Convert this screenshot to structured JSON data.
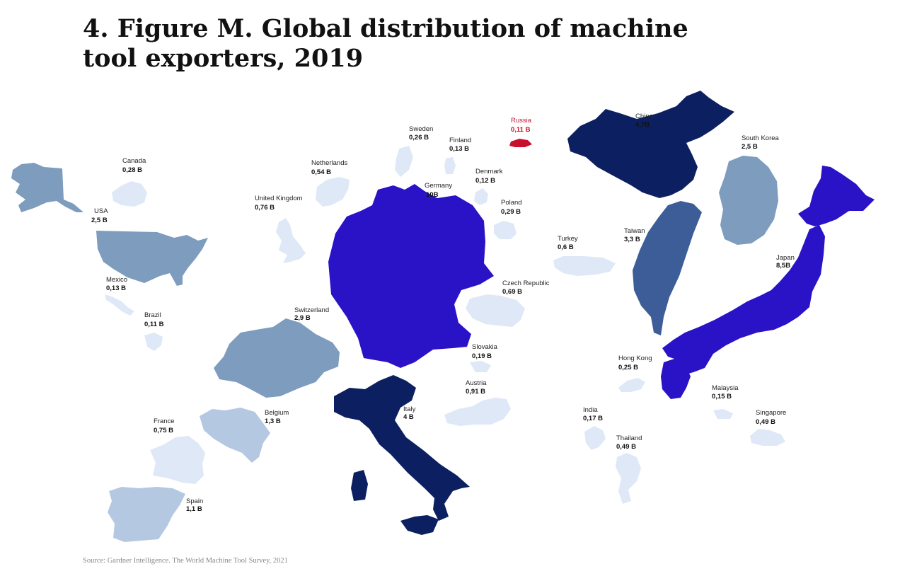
{
  "title": "4. Figure M. Global distribution of machine tool exporters, 2019",
  "source": "Source: Gardner Intelligence. The World Machine Tool Survey, 2021",
  "palette": {
    "navy": "#0c2061",
    "violet": "#2a12c6",
    "steel": "#3d5d99",
    "slate": "#7d9cbe",
    "light": "#b4c8e2",
    "pale": "#dfe8f7",
    "red": "#c8102e"
  },
  "regions": [
    {
      "id": "alaska",
      "country": "USA",
      "color": "slate"
    },
    {
      "id": "usa",
      "name": "USA",
      "value": "2,5 B",
      "color": "slate"
    },
    {
      "id": "canada",
      "name": "Canada",
      "value": "0,28 B",
      "color": "pale"
    },
    {
      "id": "mexico",
      "name": "Mexico",
      "value": "0,13 B",
      "color": "pale"
    },
    {
      "id": "brazil",
      "name": "Brazil",
      "value": "0,11 B",
      "color": "pale"
    },
    {
      "id": "uk",
      "name": "United Kingdom",
      "value": "0,76 B",
      "color": "pale"
    },
    {
      "id": "netherlands",
      "name": "Netherlands",
      "value": "0,54 B",
      "color": "pale"
    },
    {
      "id": "sweden",
      "name": "Sweden",
      "value": "0,26 B",
      "color": "pale"
    },
    {
      "id": "finland",
      "name": "Finland",
      "value": "0,13 B",
      "color": "pale"
    },
    {
      "id": "russia",
      "name": "Russia",
      "value": "0,11 B",
      "color": "red"
    },
    {
      "id": "denmark",
      "name": "Denmark",
      "value": "0,12 B",
      "color": "pale"
    },
    {
      "id": "germany",
      "name": "Germany",
      "value": "10B",
      "color": "violet"
    },
    {
      "id": "poland",
      "name": "Poland",
      "value": "0,29 B",
      "color": "pale"
    },
    {
      "id": "czech",
      "name": "Czech Republic",
      "value": "0,69 B",
      "color": "pale"
    },
    {
      "id": "slovakia",
      "name": "Slovakia",
      "value": "0,19 B",
      "color": "pale"
    },
    {
      "id": "austria",
      "name": "Austria",
      "value": "0,91 B",
      "color": "pale"
    },
    {
      "id": "switzerland",
      "name": "Switzerland",
      "value": "2,9 B",
      "color": "slate"
    },
    {
      "id": "belgium",
      "name": "Belgium",
      "value": "1,3 B",
      "color": "light"
    },
    {
      "id": "france",
      "name": "France",
      "value": "0,75 B",
      "color": "pale"
    },
    {
      "id": "spain",
      "name": "Spain",
      "value": "1,1 B",
      "color": "light"
    },
    {
      "id": "italy",
      "name": "Italy",
      "value": "4 B",
      "color": "navy"
    },
    {
      "id": "turkey",
      "name": "Turkey",
      "value": "0,6 B",
      "color": "pale"
    },
    {
      "id": "china",
      "name": "China",
      "value": "4,7B",
      "color": "navy"
    },
    {
      "id": "south_korea",
      "name": "South Korea",
      "value": "2,5 B",
      "color": "slate"
    },
    {
      "id": "taiwan",
      "name": "Taiwan",
      "value": "3,3 B",
      "color": "steel"
    },
    {
      "id": "japan",
      "name": "Japan",
      "value": "8,5B",
      "color": "violet"
    },
    {
      "id": "hong_kong",
      "name": "Hong Kong",
      "value": "0,25 B",
      "color": "pale"
    },
    {
      "id": "malaysia",
      "name": "Malaysia",
      "value": "0,15 B",
      "color": "pale"
    },
    {
      "id": "india",
      "name": "India",
      "value": "0,17 B",
      "color": "pale"
    },
    {
      "id": "thailand",
      "name": "Thailand",
      "value": "0,49 B",
      "color": "pale"
    },
    {
      "id": "singapore",
      "name": "Singapore",
      "value": "0,49 B",
      "color": "pale"
    }
  ]
}
